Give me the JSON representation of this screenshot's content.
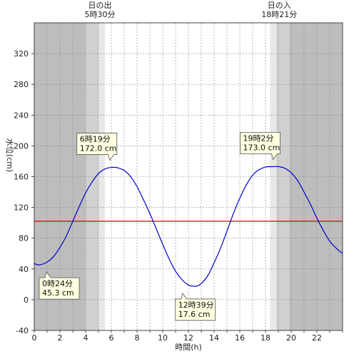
{
  "chart_data": {
    "type": "line",
    "xlabel": "時間(h)",
    "ylabel": "水位(cm)",
    "xlim": [
      0,
      24
    ],
    "ylim": [
      -40,
      360
    ],
    "x_ticks": [
      0,
      2,
      4,
      6,
      8,
      10,
      12,
      14,
      16,
      18,
      20,
      22
    ],
    "y_ticks": [
      -40,
      0,
      40,
      80,
      120,
      160,
      200,
      240,
      280,
      320
    ],
    "grid": true,
    "colors": {
      "night": "#bdbdbd",
      "twilight_dark": "#d0d0d0",
      "twilight_light": "#e8e8e8",
      "day": "#ffffff",
      "tide_line": "#0000cc",
      "reference_line": "#dd0000",
      "callout_fill": "#ffffe0"
    },
    "daylight_bands": [
      {
        "from": 0,
        "to": 4.0,
        "shade": "night"
      },
      {
        "from": 4.0,
        "to": 5.0,
        "shade": "twilight_dark"
      },
      {
        "from": 5.0,
        "to": 5.5,
        "shade": "twilight_light"
      },
      {
        "from": 18.35,
        "to": 18.85,
        "shade": "twilight_light"
      },
      {
        "from": 18.85,
        "to": 19.85,
        "shade": "twilight_dark"
      },
      {
        "from": 19.85,
        "to": 24,
        "shade": "night"
      }
    ],
    "sun": {
      "sunrise": {
        "title": "日の出",
        "time_text": "5時30分",
        "hour": 5.5
      },
      "sunset": {
        "title": "日の入",
        "time_text": "18時21分",
        "hour": 18.35
      }
    },
    "reference_level": 102,
    "series": [
      {
        "x": [
          0,
          0.4,
          1,
          1.5,
          2,
          2.5,
          3,
          3.5,
          4,
          4.5,
          5,
          5.5,
          6,
          6.32,
          6.5,
          7,
          7.5,
          8,
          8.5,
          9,
          9.5,
          10,
          10.5,
          11,
          11.5,
          12,
          12.4,
          12.65,
          13,
          13.5,
          14,
          14.5,
          15,
          15.5,
          16,
          16.5,
          17,
          17.5,
          18,
          18.5,
          19.03,
          19.5,
          20,
          20.5,
          21,
          21.5,
          22,
          22.5,
          23,
          23.5,
          24
        ],
        "y": [
          47,
          45.3,
          49,
          56,
          68,
          83,
          102,
          121,
          139,
          153,
          164,
          170,
          172,
          172,
          171.5,
          168,
          160,
          147,
          130,
          112,
          92,
          72,
          53,
          37,
          26,
          19,
          17.6,
          17.6,
          21,
          31,
          48,
          67,
          89,
          112,
          132,
          149,
          162,
          169,
          172.5,
          173,
          173,
          171,
          165,
          155,
          140,
          124,
          106,
          90,
          76,
          67,
          60
        ]
      }
    ],
    "annotations": [
      {
        "line1": "0時24分",
        "line2": "45.3 cm",
        "x": 0.4,
        "y": 45.3,
        "side": "below"
      },
      {
        "line1": "6時19分",
        "line2": "172.0 cm",
        "x": 6.32,
        "y": 172.0,
        "side": "above"
      },
      {
        "line1": "12時39分",
        "line2": "17.6 cm",
        "x": 12.65,
        "y": 17.6,
        "side": "below"
      },
      {
        "line1": "19時2分",
        "line2": "173.0 cm",
        "x": 19.03,
        "y": 173.0,
        "side": "above"
      }
    ]
  }
}
